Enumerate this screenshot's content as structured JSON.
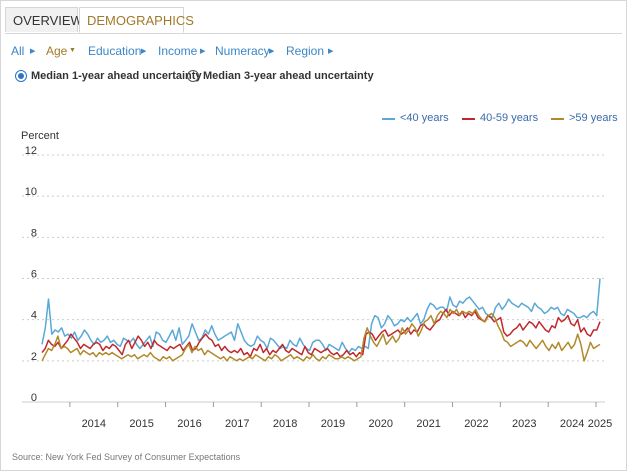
{
  "tabs": {
    "overview": "OVERVIEW",
    "demographics": "DEMOGRAPHICS"
  },
  "filters": [
    "All",
    "Age",
    "Education",
    "Income",
    "Numeracy",
    "Region"
  ],
  "active_filter": "Age",
  "radios": {
    "option1": "Median 1-year ahead uncertainty",
    "option2": "Median 3-year ahead uncertainty",
    "selected": "option1"
  },
  "source": "Source: New York Fed Survey of Consumer Expectations",
  "colors": {
    "young": "#5aa8d8",
    "mid": "#c0282d",
    "old": "#b08a2a",
    "accent": "#a07a2a",
    "link": "#3a86c8"
  },
  "chart_data": {
    "type": "line",
    "ylabel": "Percent",
    "ylim": [
      0,
      12
    ],
    "yticks": [
      "12",
      "10",
      "8",
      "6",
      "4",
      "2",
      "0"
    ],
    "xticks": [
      "2014",
      "2015",
      "2016",
      "2017",
      "2018",
      "2019",
      "2020",
      "2021",
      "2022",
      "2023",
      "2024",
      "2025"
    ],
    "x_start": "2013-06",
    "x_end": "2025-02",
    "grid": "horizontal dashed",
    "legend_position": "top-right",
    "series": [
      {
        "name": "<40 years",
        "color": "#5aa8d8",
        "values": [
          2.8,
          3.6,
          5.0,
          3.3,
          3.5,
          3.4,
          3.6,
          3.2,
          3.3,
          3.1,
          3.4,
          3.0,
          3.2,
          3.5,
          3.3,
          3.0,
          2.8,
          3.1,
          2.9,
          3.0,
          3.2,
          2.9,
          3.0,
          2.8,
          2.7,
          3.1,
          3.0,
          2.9,
          3.1,
          2.8,
          2.6,
          2.8,
          3.0,
          3.2,
          2.7,
          3.4,
          3.3,
          3.0,
          2.9,
          3.2,
          3.5,
          3.0,
          3.6,
          2.8,
          3.0,
          3.2,
          3.8,
          3.4,
          3.0,
          3.1,
          3.5,
          3.3,
          3.7,
          3.3,
          3.0,
          3.1,
          3.2,
          3.3,
          3.4,
          3.0,
          3.8,
          3.4,
          3.0,
          2.8,
          2.7,
          2.8,
          3.2,
          3.0,
          2.9,
          2.6,
          3.1,
          3.0,
          2.8,
          2.6,
          2.7,
          2.6,
          3.0,
          2.8,
          2.7,
          3.1,
          2.8,
          2.6,
          2.5,
          2.9,
          3.0,
          3.0,
          2.8,
          2.5,
          2.8,
          2.7,
          2.6,
          2.5,
          2.9,
          2.6,
          2.4,
          2.6,
          2.5,
          2.7,
          2.6,
          2.7,
          2.6,
          3.8,
          4.2,
          4.1,
          3.6,
          3.8,
          4.2,
          4.0,
          3.7,
          3.8,
          4.0,
          3.9,
          4.1,
          3.9,
          4.1,
          4.3,
          3.8,
          4.0,
          4.5,
          4.8,
          4.7,
          4.5,
          4.6,
          4.6,
          4.4,
          5.1,
          4.7,
          4.6,
          4.9,
          4.8,
          5.0,
          5.1,
          4.9,
          4.7,
          4.5,
          4.6,
          4.3,
          4.2,
          4.1,
          4.6,
          4.8,
          4.5,
          4.7,
          5.0,
          4.8,
          4.7,
          4.6,
          4.8,
          4.7,
          4.6,
          4.4,
          4.8,
          4.6,
          4.5,
          4.3,
          4.4,
          4.6,
          4.5,
          4.6,
          4.3,
          4.2,
          4.5,
          4.4,
          4.3,
          4.1,
          4.1,
          4.2,
          4.1,
          4.3,
          4.4,
          4.2,
          6.0
        ]
      },
      {
        "name": "40-59 years",
        "color": "#c0282d",
        "values": [
          2.4,
          2.6,
          3.0,
          2.8,
          2.7,
          2.9,
          2.6,
          2.8,
          3.0,
          3.3,
          3.1,
          2.9,
          2.6,
          2.8,
          2.7,
          2.6,
          2.8,
          2.9,
          2.8,
          2.5,
          2.7,
          2.6,
          2.8,
          2.7,
          2.5,
          2.3,
          2.8,
          3.0,
          2.6,
          2.9,
          3.2,
          3.0,
          2.7,
          2.9,
          2.6,
          3.0,
          2.8,
          2.7,
          2.6,
          2.5,
          2.7,
          2.6,
          2.7,
          2.8,
          2.5,
          2.7,
          2.9,
          2.5,
          2.6,
          2.9,
          3.1,
          3.3,
          3.1,
          3.0,
          2.7,
          2.8,
          2.5,
          2.7,
          2.5,
          2.4,
          2.5,
          2.4,
          2.6,
          2.3,
          2.4,
          2.2,
          2.6,
          2.5,
          2.8,
          2.4,
          2.6,
          2.3,
          2.5,
          2.4,
          2.6,
          2.8,
          2.5,
          2.4,
          2.6,
          2.5,
          2.4,
          2.3,
          2.7,
          2.4,
          2.3,
          2.6,
          2.5,
          2.4,
          2.5,
          2.6,
          2.4,
          2.3,
          2.4,
          2.2,
          2.3,
          2.5,
          2.3,
          2.4,
          2.2,
          2.4,
          2.3,
          3.3,
          3.4,
          3.3,
          3.0,
          3.2,
          3.4,
          3.5,
          3.2,
          3.3,
          3.4,
          3.5,
          3.3,
          3.4,
          3.6,
          3.3,
          3.5,
          3.4,
          3.7,
          3.8,
          3.6,
          3.5,
          3.7,
          3.9,
          4.0,
          4.3,
          4.5,
          4.2,
          4.4,
          4.3,
          4.2,
          4.4,
          4.1,
          4.3,
          4.2,
          4.4,
          4.1,
          4.0,
          3.9,
          4.2,
          4.1,
          3.9,
          4.0,
          4.1,
          3.4,
          3.2,
          3.3,
          3.5,
          3.6,
          3.8,
          3.5,
          3.7,
          3.9,
          3.8,
          3.6,
          3.9,
          3.7,
          3.5,
          3.4,
          3.7,
          3.6,
          4.1,
          3.9,
          4.0,
          4.2,
          3.8,
          3.7,
          4.0,
          3.4,
          3.6,
          3.3,
          3.2,
          3.5,
          3.5,
          3.9
        ]
      },
      {
        "name": ">59 years",
        "color": "#b08a2a",
        "values": [
          2.0,
          2.3,
          2.6,
          2.5,
          2.8,
          3.2,
          2.6,
          2.7,
          2.6,
          2.4,
          2.5,
          2.6,
          2.3,
          2.5,
          2.4,
          2.3,
          2.4,
          2.2,
          2.4,
          2.3,
          2.4,
          2.3,
          2.4,
          2.3,
          2.2,
          2.1,
          2.2,
          2.3,
          2.2,
          2.3,
          2.1,
          2.2,
          2.3,
          2.2,
          2.4,
          2.2,
          2.1,
          2.0,
          2.2,
          2.1,
          2.2,
          2.0,
          2.1,
          2.2,
          2.3,
          2.6,
          2.8,
          2.4,
          2.7,
          2.5,
          2.6,
          2.3,
          2.5,
          2.4,
          2.3,
          2.2,
          2.1,
          2.2,
          2.0,
          2.2,
          2.1,
          2.0,
          2.1,
          2.0,
          2.1,
          2.2,
          2.1,
          2.3,
          2.2,
          2.1,
          2.0,
          2.2,
          2.1,
          2.3,
          2.2,
          2.0,
          2.1,
          2.2,
          2.3,
          2.1,
          2.2,
          2.1,
          2.0,
          2.2,
          2.1,
          2.3,
          2.1,
          2.0,
          2.2,
          2.1,
          2.3,
          2.2,
          2.1,
          2.1,
          2.2,
          2.1,
          2.2,
          2.1,
          2.0,
          2.1,
          2.2,
          3.1,
          3.6,
          3.2,
          2.9,
          2.7,
          3.0,
          3.3,
          2.8,
          3.0,
          3.2,
          2.9,
          3.1,
          3.6,
          3.3,
          3.5,
          3.8,
          3.6,
          3.2,
          3.5,
          3.9,
          4.0,
          4.2,
          3.8,
          4.2,
          4.4,
          4.3,
          4.1,
          4.5,
          4.3,
          4.5,
          4.2,
          4.4,
          4.3,
          4.4,
          4.3,
          4.5,
          4.2,
          4.0,
          3.9,
          4.2,
          4.3,
          4.1,
          3.7,
          3.4,
          3.0,
          2.9,
          2.7,
          2.8,
          2.9,
          3.0,
          2.9,
          2.7,
          3.0,
          2.8,
          2.6,
          2.8,
          3.0,
          2.7,
          2.5,
          2.8,
          2.6,
          2.9,
          2.5,
          2.7,
          2.9,
          2.6,
          2.8,
          3.3,
          2.8,
          2.0,
          2.4,
          2.9,
          2.6,
          2.7,
          2.8
        ]
      }
    ]
  }
}
